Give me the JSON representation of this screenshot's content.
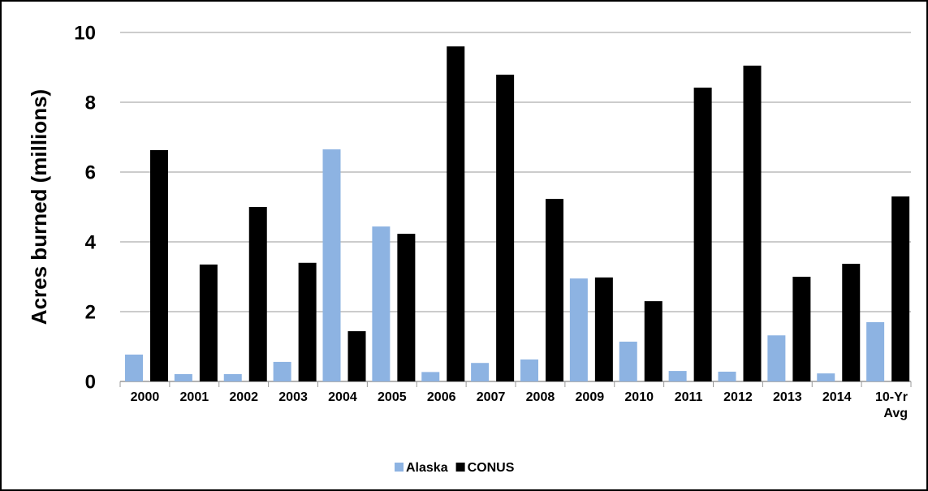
{
  "chart_data": {
    "type": "bar",
    "ylabel": "Acres burned (millions)",
    "categories": [
      "2000",
      "2001",
      "2002",
      "2003",
      "2004",
      "2005",
      "2006",
      "2007",
      "2008",
      "2009",
      "2010",
      "2011",
      "2012",
      "2013",
      "2014",
      "10-Yr Avg"
    ],
    "series": [
      {
        "name": "Alaska",
        "color": "#8db3e2",
        "values": [
          0.77,
          0.21,
          0.21,
          0.56,
          6.65,
          4.44,
          0.27,
          0.53,
          0.63,
          2.95,
          1.14,
          0.3,
          0.28,
          1.32,
          0.23,
          1.7
        ]
      },
      {
        "name": "CONUS",
        "color": "#000000",
        "values": [
          6.63,
          3.35,
          5.0,
          3.4,
          1.44,
          4.23,
          9.6,
          8.79,
          5.23,
          2.98,
          2.3,
          8.42,
          9.05,
          3.0,
          3.37,
          5.3
        ]
      }
    ],
    "ylim": [
      0,
      10
    ],
    "yticks": [
      0,
      2,
      4,
      6,
      8,
      10
    ],
    "grid": true,
    "legend": "bottom"
  }
}
